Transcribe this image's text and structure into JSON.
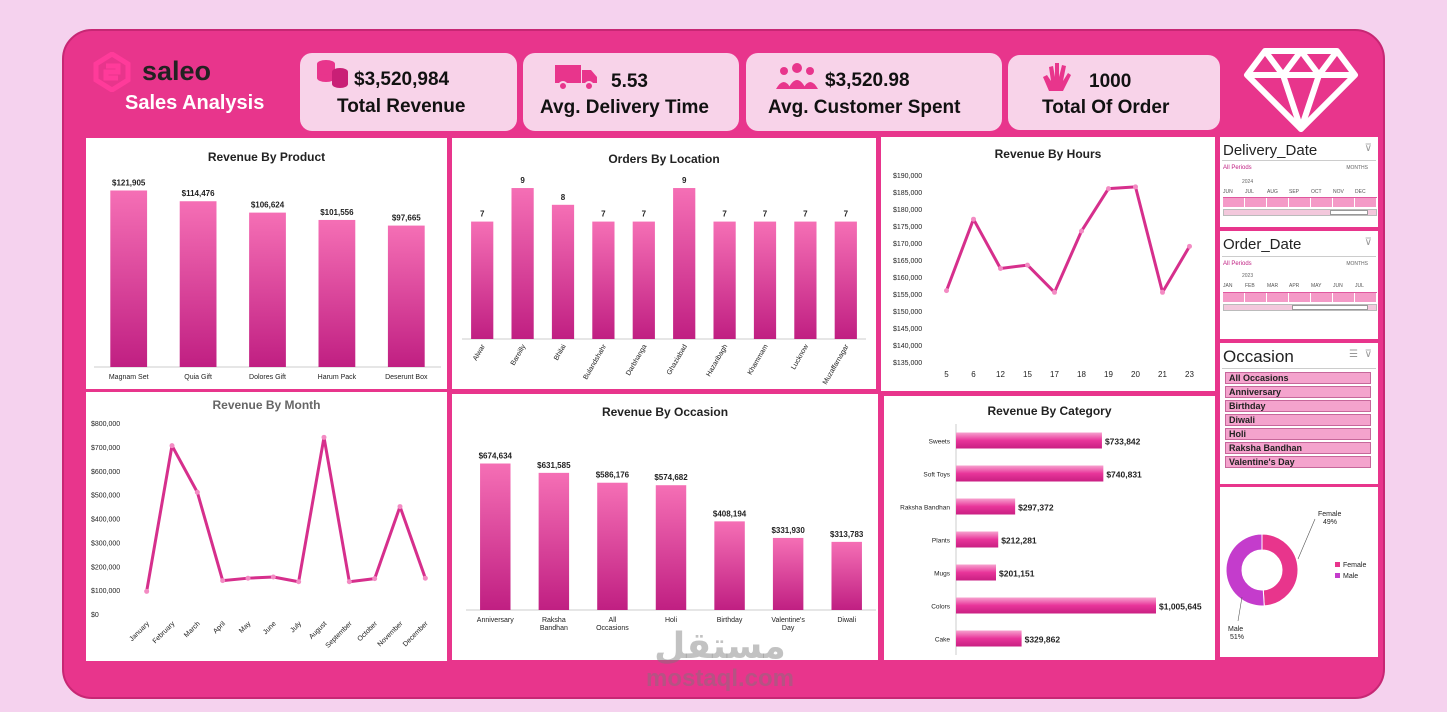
{
  "brand": {
    "name": "saleo",
    "subtitle": "Sales Analysis"
  },
  "kpis": [
    {
      "value": "$3,520,984",
      "label": "Total Revenue",
      "icon": "coins-icon"
    },
    {
      "value": "5.53",
      "label": "Avg. Delivery Time",
      "icon": "truck-icon"
    },
    {
      "value": "$3,520.98",
      "label": "Avg. Customer Spent",
      "icon": "people-icon"
    },
    {
      "value": "1000",
      "label": "Total Of Order",
      "icon": "clap-icon"
    }
  ],
  "slicers": {
    "delivery": {
      "title": "Delivery_Date",
      "periods": "All Periods",
      "unit": "MONTHS",
      "year": "2024",
      "months": [
        "JUN",
        "JUL",
        "AUG",
        "SEP",
        "OCT",
        "NOV",
        "DEC"
      ]
    },
    "order": {
      "title": "Order_Date",
      "periods": "All Periods",
      "unit": "MONTHS",
      "year": "2023",
      "months": [
        "JAN",
        "FEB",
        "MAR",
        "APR",
        "MAY",
        "JUN",
        "JUL"
      ]
    },
    "occasion": {
      "title": "Occasion",
      "items": [
        "All Occasions",
        "Anniversary",
        "Birthday",
        "Diwali",
        "Holi",
        "Raksha Bandhan",
        "Valentine's Day"
      ]
    }
  },
  "watermark": {
    "arabic": "مستقل",
    "latin": "mostaql.com"
  },
  "colors": {
    "frame": "#e8358c",
    "bar_top": "#f56fb5",
    "bar_bottom": "#c01f82",
    "line": "#d62f8c",
    "page": "#f5d2ee"
  },
  "chart_data": [
    {
      "id": "product",
      "type": "bar",
      "title": "Revenue By Product",
      "categories": [
        "Magnam Set",
        "Quia Gift",
        "Dolores Gift",
        "Harum Pack",
        "Deserunt Box"
      ],
      "values": [
        121905,
        114476,
        106624,
        101556,
        97665
      ],
      "labels": [
        "$121,905",
        "$114,476",
        "$106,624",
        "$101,556",
        "$97,665"
      ],
      "ylim": [
        0,
        125000
      ]
    },
    {
      "id": "location",
      "type": "bar",
      "title": "Orders By Location",
      "categories": [
        "Alwar",
        "Bareilly",
        "Bhilai",
        "Bulandshahr",
        "Darbhanga",
        "Ghaziabad",
        "Hazaribagh",
        "Khammam",
        "Lucknow",
        "Muzaffarnagar"
      ],
      "values": [
        7,
        9,
        8,
        7,
        7,
        9,
        7,
        7,
        7,
        7
      ],
      "labels": [
        "7",
        "9",
        "8",
        "7",
        "7",
        "9",
        "7",
        "7",
        "7",
        "7"
      ],
      "ylim": [
        0,
        9.3
      ]
    },
    {
      "id": "hours",
      "type": "line",
      "title": "Revenue By Hours",
      "categories": [
        "5",
        "6",
        "12",
        "15",
        "17",
        "18",
        "19",
        "20",
        "21",
        "23"
      ],
      "values": [
        156000,
        177000,
        162500,
        163500,
        155500,
        173500,
        186000,
        186500,
        155500,
        169000
      ],
      "yticks": [
        "$135,000",
        "$140,000",
        "$145,000",
        "$150,000",
        "$155,000",
        "$160,000",
        "$165,000",
        "$170,000",
        "$175,000",
        "$180,000",
        "$185,000",
        "$190,000"
      ],
      "ylim": [
        135000,
        190000
      ]
    },
    {
      "id": "month",
      "type": "line",
      "title": "Revenue By Month",
      "categories": [
        "January",
        "February",
        "March",
        "April",
        "May",
        "June",
        "July",
        "August",
        "September",
        "October",
        "November",
        "December"
      ],
      "values": [
        95000,
        705000,
        510000,
        140000,
        150000,
        155000,
        135000,
        740000,
        135000,
        148000,
        450000,
        150000
      ],
      "yticks": [
        "$0",
        "$100,000",
        "$200,000",
        "$300,000",
        "$400,000",
        "$500,000",
        "$600,000",
        "$700,000",
        "$800,000"
      ],
      "ylim": [
        0,
        800000
      ]
    },
    {
      "id": "occasion",
      "type": "bar",
      "title": "Revenue By Occasion",
      "categories": [
        "Anniversary",
        "Raksha Bandhan",
        "All Occasions",
        "Holi",
        "Birthday",
        "Valentine's Day",
        "Diwali"
      ],
      "values": [
        674634,
        631585,
        586176,
        574682,
        408194,
        331930,
        313783
      ],
      "labels": [
        "$674,634",
        "$631,585",
        "$586,176",
        "$574,682",
        "$408,194",
        "$331,930",
        "$313,783"
      ],
      "ylim": [
        0,
        700000
      ]
    },
    {
      "id": "category",
      "type": "bar",
      "orientation": "horizontal",
      "title": "Revenue By Category",
      "categories": [
        "Sweets",
        "Soft Toys",
        "Raksha Bandhan",
        "Plants",
        "Mugs",
        "Colors",
        "Cake"
      ],
      "values": [
        733842,
        740831,
        297372,
        212281,
        201151,
        1005645,
        329862
      ],
      "labels": [
        "$733,842",
        "$740,831",
        "$297,372",
        "$212,281",
        "$201,151",
        "$1,005,645",
        "$329,862"
      ],
      "xlim": [
        0,
        1005645
      ]
    },
    {
      "id": "gender",
      "type": "pie",
      "donut": true,
      "categories": [
        "Female",
        "Male"
      ],
      "values": [
        49,
        51
      ],
      "labels": [
        "Female 49%",
        "Male 51%"
      ],
      "colors": [
        "#e8358c",
        "#c43ccc"
      ],
      "legend": "right"
    }
  ]
}
